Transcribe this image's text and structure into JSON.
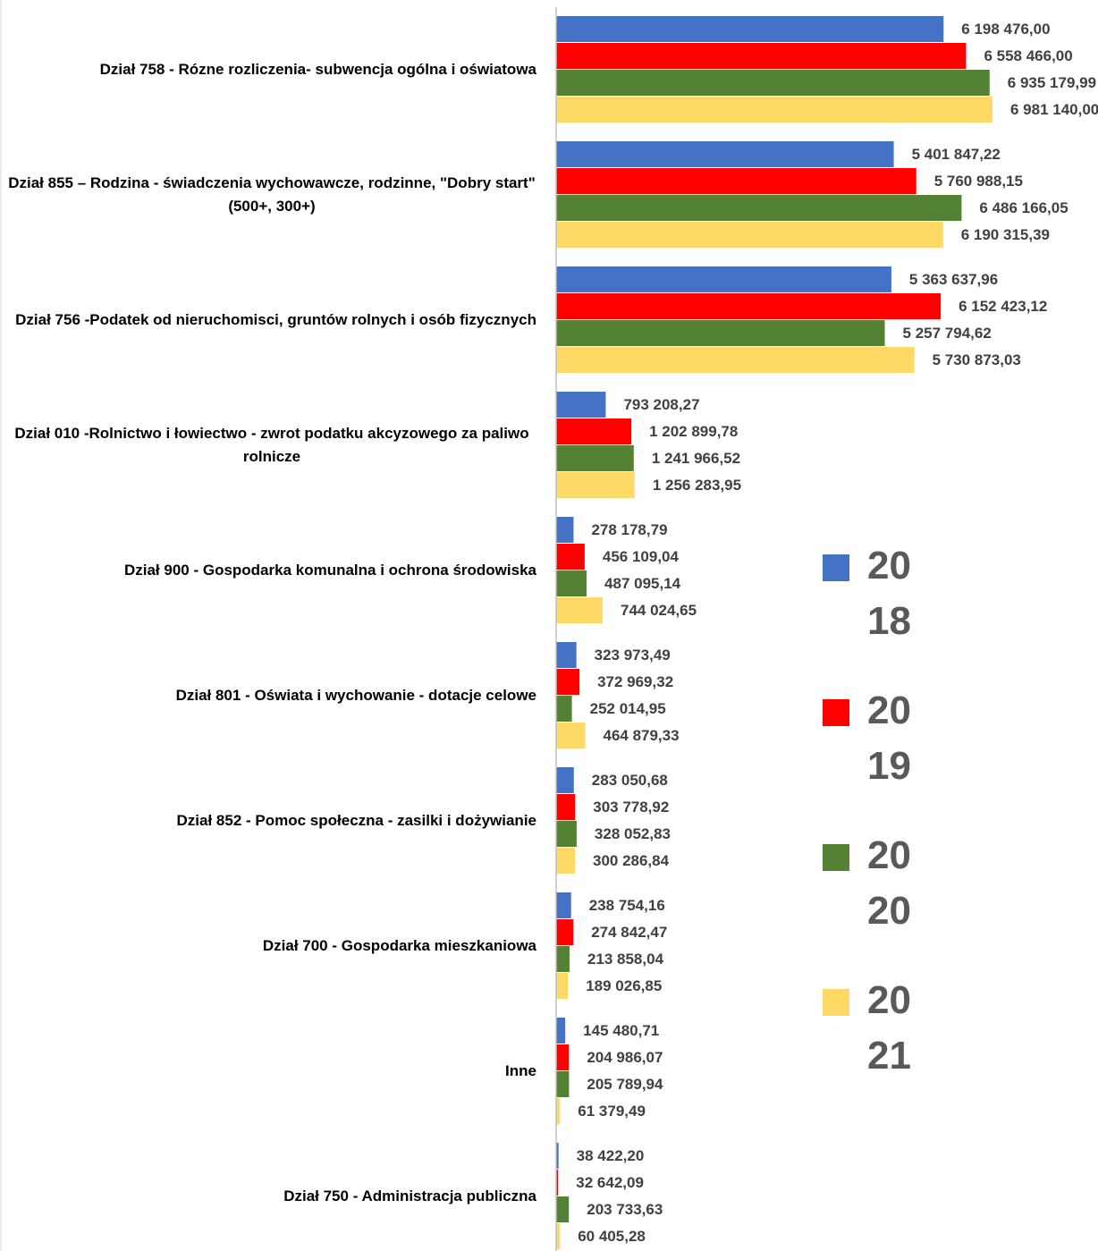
{
  "chart_data": {
    "type": "bar",
    "orientation": "horizontal",
    "categories": [
      "Dział 758 -  Rózne rozliczenia- subwencja ogólna i oświatowa",
      "Dział 855 – Rodzina - świadczenia wychowawcze, rodzinne, \"Dobry start\" (500+, 300+)",
      "Dział 756 -Podatek od nieruchomisci, gruntów rolnych i osób fizycznych",
      "Dział 010  -Rolnictwo i łowiectwo - zwrot podatku akcyzowego za paliwo rolnicze",
      "Dział 900 - Gospodarka komunalna i ochrona środowiska",
      "Dział 801 - Oświata i wychowanie - dotacje celowe",
      "Dział 852 - Pomoc społeczna - zasilki i dożywianie",
      "Dział 700 - Gospodarka mieszkaniowa",
      "Inne",
      "Dział 750 - Administracja publiczna"
    ],
    "series": [
      {
        "name": "2018",
        "color": "#4472c4",
        "values": [
          6198476.0,
          5401847.22,
          5363637.96,
          793208.27,
          278178.79,
          323973.49,
          283050.68,
          238754.16,
          145480.71,
          38422.2
        ],
        "value_labels": [
          "6 198 476,00",
          "5 401 847,22",
          "5 363 637,96",
          "793 208,27",
          "278 178,79",
          "323 973,49",
          "283 050,68",
          "238 754,16",
          "145 480,71",
          "38 422,20"
        ]
      },
      {
        "name": "2019",
        "color": "#ff0000",
        "values": [
          6558466.0,
          5760988.15,
          6152423.12,
          1202899.78,
          456109.04,
          372969.32,
          303778.92,
          274842.47,
          204986.07,
          32642.09
        ],
        "value_labels": [
          "6 558 466,00",
          "5 760 988,15",
          "6 152 423,12",
          "1 202 899,78",
          "456 109,04",
          "372 969,32",
          "303 778,92",
          "274 842,47",
          "204 986,07",
          "32 642,09"
        ]
      },
      {
        "name": "2020",
        "color": "#548235",
        "values": [
          6935179.99,
          6486166.05,
          5257794.62,
          1241966.52,
          487095.14,
          252014.95,
          328052.83,
          213858.04,
          205789.94,
          203733.63
        ],
        "value_labels": [
          "6 935 179,99",
          "6 486 166,05",
          "5 257 794,62",
          "1 241 966,52",
          "487 095,14",
          "252 014,95",
          "328 052,83",
          "213 858,04",
          "205 789,94",
          "203 733,63"
        ]
      },
      {
        "name": "2021",
        "color": "#ffd966",
        "values": [
          6981140.0,
          6190315.39,
          5730873.03,
          1256283.95,
          744024.65,
          464879.33,
          300286.84,
          189026.85,
          61379.49,
          60405.28
        ],
        "value_labels": [
          "6 981 140,00",
          "6 190 315,39",
          "5 730 873,03",
          "1 256 283,95",
          "744 024,65",
          "464 879,33",
          "300 286,84",
          "189 026,85",
          "61 379,49",
          "60 405,28"
        ]
      }
    ],
    "legend": "right"
  }
}
